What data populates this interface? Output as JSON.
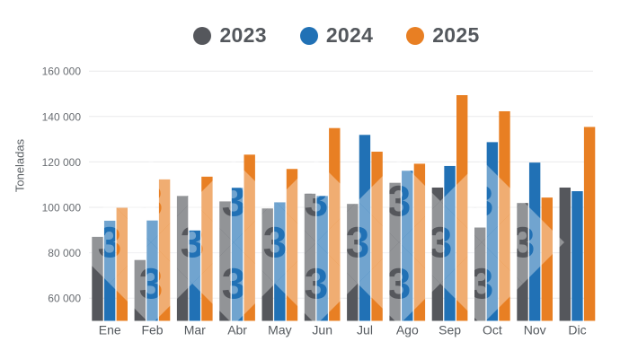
{
  "legend": {
    "items": [
      {
        "label": "2023",
        "color": "#55575c"
      },
      {
        "label": "2024",
        "color": "#2171b5"
      },
      {
        "label": "2025",
        "color": "#e87f23"
      }
    ]
  },
  "chart_data": {
    "type": "bar",
    "categories": [
      "Ene",
      "Feb",
      "Mar",
      "Abr",
      "May",
      "Jun",
      "Jul",
      "Ago",
      "Sep",
      "Oct",
      "Nov",
      "Dic"
    ],
    "series": [
      {
        "name": "2023",
        "color": "#55575c",
        "values": [
          87000,
          76800,
          105000,
          102600,
          99500,
          106000,
          101500,
          110800,
          108700,
          91100,
          101900,
          108700
        ]
      },
      {
        "name": "2024",
        "color": "#2171b5",
        "values": [
          94100,
          94200,
          89800,
          108600,
          102200,
          105000,
          131900,
          116100,
          118200,
          128700,
          119700,
          107100
        ]
      },
      {
        "name": "2025",
        "color": "#e87f23",
        "values": [
          99800,
          112300,
          113500,
          123200,
          116900,
          134900,
          124500,
          119200,
          149400,
          142300,
          104300,
          135400
        ]
      }
    ],
    "title": "",
    "xlabel": "",
    "ylabel": "Toneladas",
    "ylim": [
      50000,
      165000
    ],
    "yticks": [
      60000,
      80000,
      100000,
      120000,
      140000,
      160000
    ],
    "grid": true,
    "legend_position": "top"
  },
  "watermark": {
    "symbol": "3",
    "color": "#ffffff",
    "opacity": 0.36
  },
  "colors": {
    "grid_line": "#e9e9eb",
    "axis_tick_text": "#696d72",
    "x_label_text": "#54595e",
    "y_title_text": "#5b6064"
  }
}
